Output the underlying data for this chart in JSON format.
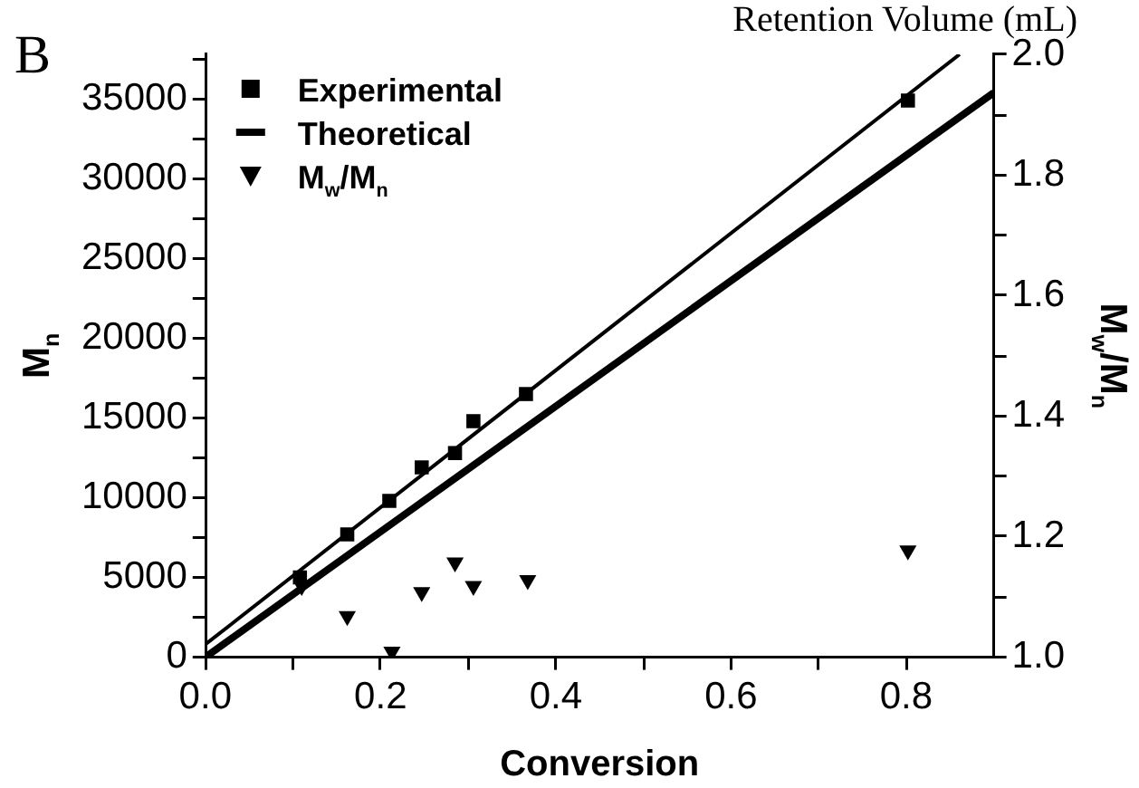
{
  "chart_data": {
    "type": "scatter",
    "title": "B",
    "xlabel": "Conversion",
    "ylabel": "M$_{n}$",
    "y2label": "M$_{w}$/M$_{n}$",
    "annotations": [
      "Retention Volume (mL)"
    ],
    "xlim": [
      0,
      0.9
    ],
    "xticks": [
      {
        "value": 0,
        "label": "0.0"
      },
      {
        "value": 0.1,
        "label": null
      },
      0.2,
      {
        "value": 0.3,
        "label": null
      },
      0.4,
      {
        "value": 0.5,
        "label": null
      },
      0.6,
      {
        "value": 0.7,
        "label": null
      },
      0.8
    ],
    "ylim": [
      0,
      37800
    ],
    "yticks": [
      0,
      {
        "value": 2500,
        "label": null
      },
      5000,
      {
        "value": 7500,
        "label": null
      },
      10000,
      {
        "value": 12500,
        "label": null
      },
      15000,
      {
        "value": 17500,
        "label": null
      },
      20000,
      {
        "value": 22500,
        "label": null
      },
      25000,
      {
        "value": 27500,
        "label": null
      },
      30000,
      {
        "value": 32500,
        "label": null
      },
      35000,
      {
        "value": 37500,
        "label": null
      }
    ],
    "y2lim": [
      1,
      2
    ],
    "y2ticks": [
      {
        "value": 1,
        "label": "1.0"
      },
      {
        "value": 1.1,
        "label": null
      },
      1.2,
      {
        "value": 1.3,
        "label": null
      },
      1.4,
      {
        "value": 1.5,
        "label": null
      },
      1.6,
      {
        "value": 1.7,
        "label": null
      },
      1.8,
      {
        "value": 1.9,
        "label": null
      },
      {
        "value": 2,
        "label": "2.0"
      }
    ],
    "grid": false,
    "legend": "top left",
    "series": [
      {
        "name": "Experimental",
        "marker": "square",
        "color": "#000000",
        "x": [
          0.108,
          0.162,
          0.21,
          0.247,
          0.285,
          0.306,
          0.366,
          0.802
        ],
        "values": [
          5000,
          7700,
          9800,
          11900,
          12800,
          14800,
          16500,
          34900
        ]
      },
      {
        "name": "Theoretical",
        "type": "line",
        "marker": "none",
        "color": "#000000",
        "x": [
          0,
          0.9
        ],
        "values": [
          0,
          35400
        ]
      },
      {
        "type": "line",
        "marker": "none",
        "color": "#000000",
        "x": [
          0,
          0.861
        ],
        "values": [
          800,
          37800
        ]
      },
      {
        "name": "M$_{w}$/M$_{n}$",
        "marker": "triangle",
        "axis": "y2",
        "color": "#000000",
        "x": [
          0.11,
          0.162,
          0.213,
          0.247,
          0.285,
          0.306,
          0.368,
          0.802
        ],
        "values": [
          1.118,
          1.068,
          1.009,
          1.108,
          1.157,
          1.118,
          1.128,
          1.177
        ]
      }
    ]
  }
}
